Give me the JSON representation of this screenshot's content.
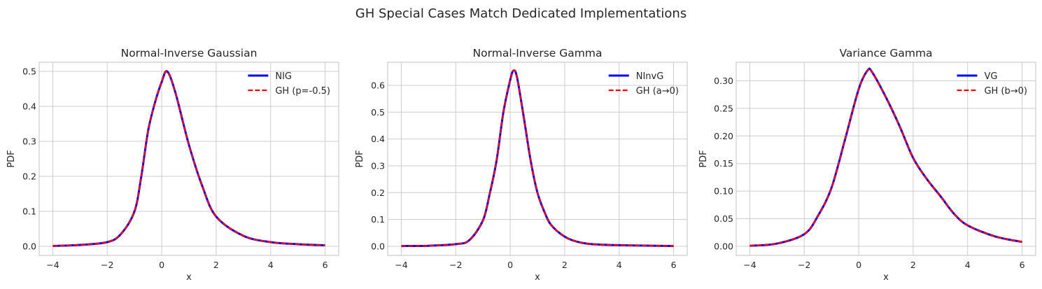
{
  "figure": {
    "suptitle": "GH Special Cases Match Dedicated Implementations"
  },
  "colors": {
    "solid": "#0000ff",
    "dashed": "#ff0000",
    "grid": "#cccccc",
    "text": "#262626"
  },
  "chart_data": [
    {
      "type": "line",
      "title": "Normal-Inverse Gaussian",
      "xlabel": "x",
      "ylabel": "PDF",
      "xlim": [
        -4.5,
        6.5
      ],
      "ylim": [
        -0.026,
        0.526
      ],
      "grid": true,
      "legend_position": "top-right",
      "xticks": [
        -4,
        -2,
        0,
        2,
        4,
        6
      ],
      "xtick_labels": [
        "−4",
        "−2",
        "0",
        "2",
        "4",
        "6"
      ],
      "yticks": [
        0,
        0.1,
        0.2,
        0.3,
        0.4,
        0.5
      ],
      "ytick_labels": [
        "0.0",
        "0.1",
        "0.2",
        "0.3",
        "0.4",
        "0.5"
      ],
      "x": [
        -4,
        -3,
        -2,
        -1.5,
        -1,
        -0.75,
        -0.5,
        -0.25,
        0,
        0.2,
        0.5,
        1,
        1.5,
        2,
        3,
        4,
        5,
        6
      ],
      "series": [
        {
          "name": "NIG",
          "style": "solid",
          "values": [
            0.001,
            0.004,
            0.012,
            0.035,
            0.1,
            0.2,
            0.33,
            0.41,
            0.47,
            0.5,
            0.44,
            0.29,
            0.17,
            0.085,
            0.03,
            0.012,
            0.006,
            0.003
          ]
        },
        {
          "name": "GH (p=-0.5)",
          "style": "dashed",
          "values": [
            0.001,
            0.004,
            0.012,
            0.035,
            0.1,
            0.2,
            0.33,
            0.41,
            0.47,
            0.5,
            0.44,
            0.29,
            0.17,
            0.085,
            0.03,
            0.012,
            0.006,
            0.003
          ]
        }
      ]
    },
    {
      "type": "line",
      "title": "Normal-Inverse Gamma",
      "xlabel": "x",
      "ylabel": "PDF",
      "xlim": [
        -4.5,
        6.5
      ],
      "ylim": [
        -0.034,
        0.686
      ],
      "grid": true,
      "legend_position": "top-right",
      "xticks": [
        -4,
        -2,
        0,
        2,
        4,
        6
      ],
      "xtick_labels": [
        "−4",
        "−2",
        "0",
        "2",
        "4",
        "6"
      ],
      "yticks": [
        0,
        0.1,
        0.2,
        0.3,
        0.4,
        0.5,
        0.6
      ],
      "ytick_labels": [
        "0.0",
        "0.1",
        "0.2",
        "0.3",
        "0.4",
        "0.5",
        "0.6"
      ],
      "x": [
        -4,
        -3,
        -2,
        -1.5,
        -1,
        -0.75,
        -0.5,
        -0.25,
        0,
        0.12,
        0.25,
        0.5,
        0.75,
        1,
        1.25,
        1.5,
        2,
        2.5,
        3,
        4,
        6
      ],
      "series": [
        {
          "name": "NInvG",
          "style": "solid",
          "values": [
            0.001,
            0.002,
            0.008,
            0.023,
            0.097,
            0.197,
            0.32,
            0.5,
            0.62,
            0.655,
            0.63,
            0.48,
            0.32,
            0.2,
            0.13,
            0.08,
            0.036,
            0.016,
            0.008,
            0.004,
            0.001
          ]
        },
        {
          "name": "GH (a→0)",
          "style": "dashed",
          "values": [
            0.001,
            0.002,
            0.008,
            0.023,
            0.097,
            0.197,
            0.32,
            0.5,
            0.62,
            0.655,
            0.63,
            0.48,
            0.32,
            0.2,
            0.13,
            0.08,
            0.036,
            0.016,
            0.008,
            0.004,
            0.001
          ]
        }
      ]
    },
    {
      "type": "line",
      "title": "Variance Gamma",
      "xlabel": "x",
      "ylabel": "PDF",
      "xlim": [
        -4.5,
        6.5
      ],
      "ylim": [
        -0.0165,
        0.3335
      ],
      "grid": true,
      "legend_position": "top-right",
      "xticks": [
        -4,
        -2,
        0,
        2,
        4,
        6
      ],
      "xtick_labels": [
        "−4",
        "−2",
        "0",
        "2",
        "4",
        "6"
      ],
      "yticks": [
        0,
        0.05,
        0.1,
        0.15,
        0.2,
        0.25,
        0.3
      ],
      "ytick_labels": [
        "0.00",
        "0.05",
        "0.10",
        "0.15",
        "0.20",
        "0.25",
        "0.30"
      ],
      "x": [
        -4,
        -3,
        -2,
        -1.5,
        -1,
        -0.5,
        0,
        0.33,
        0.5,
        1,
        1.5,
        2,
        2.5,
        3,
        3.5,
        4,
        5,
        6
      ],
      "series": [
        {
          "name": "VG",
          "style": "solid",
          "values": [
            0.001,
            0.005,
            0.022,
            0.055,
            0.106,
            0.194,
            0.285,
            0.319,
            0.315,
            0.27,
            0.218,
            0.16,
            0.122,
            0.091,
            0.059,
            0.038,
            0.018,
            0.008
          ]
        },
        {
          "name": "GH (b→0)",
          "style": "dashed",
          "values": [
            0.001,
            0.005,
            0.022,
            0.055,
            0.106,
            0.194,
            0.285,
            0.319,
            0.315,
            0.27,
            0.218,
            0.16,
            0.122,
            0.091,
            0.059,
            0.038,
            0.018,
            0.008
          ]
        }
      ]
    }
  ]
}
